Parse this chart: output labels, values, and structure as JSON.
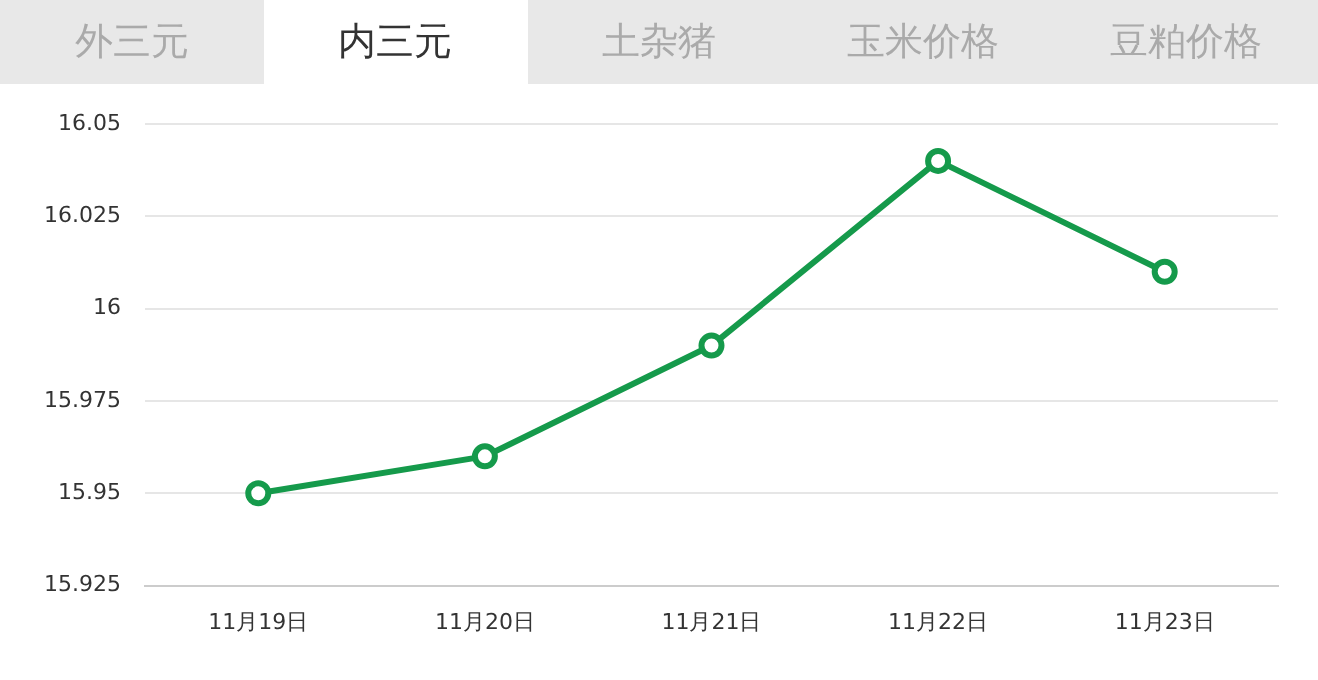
{
  "chart_data": {
    "type": "line",
    "title": "内三元",
    "annotations": [
      "外三元",
      "土杂猪",
      "玉米价格",
      "豆粕价格"
    ],
    "categories": [
      "11月19日",
      "11月20日",
      "11月21日",
      "11月22日",
      "11月23日"
    ],
    "values": [
      15.95,
      15.96,
      15.99,
      16.04,
      16.01
    ],
    "color": "#159a4b",
    "ylim": [
      15.925,
      16.05
    ],
    "yticks": [
      15.925,
      15.95,
      15.975,
      16,
      16.025,
      16.05
    ],
    "grid": "y",
    "marker": "circle",
    "line_style": "solid",
    "legend": false
  }
}
